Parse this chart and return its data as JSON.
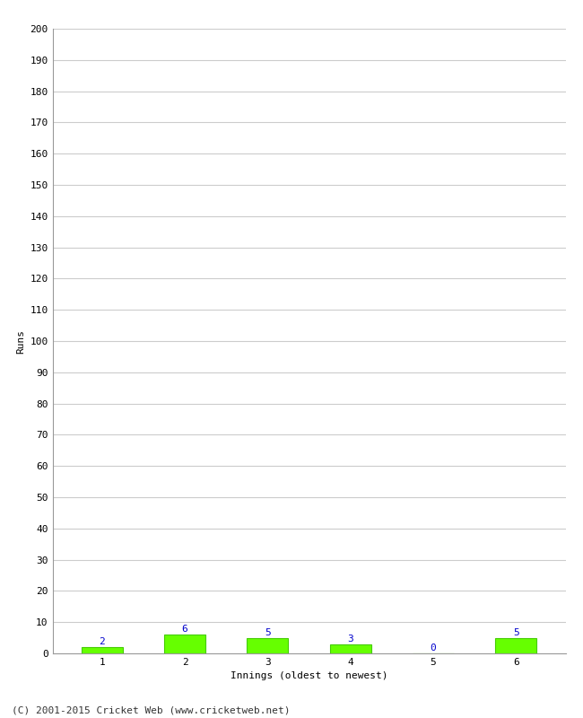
{
  "xlabel": "Innings (oldest to newest)",
  "ylabel": "Runs",
  "categories": [
    1,
    2,
    3,
    4,
    5,
    6
  ],
  "values": [
    2,
    6,
    5,
    3,
    0,
    5
  ],
  "bar_color": "#66ff00",
  "bar_edge_color": "#44cc00",
  "value_color": "#0000cc",
  "ylim": [
    0,
    200
  ],
  "yticks": [
    0,
    10,
    20,
    30,
    40,
    50,
    60,
    70,
    80,
    90,
    100,
    110,
    120,
    130,
    140,
    150,
    160,
    170,
    180,
    190,
    200
  ],
  "grid_color": "#cccccc",
  "background_color": "#ffffff",
  "footer": "(C) 2001-2015 Cricket Web (www.cricketweb.net)",
  "value_fontsize": 8,
  "axis_label_fontsize": 8,
  "tick_fontsize": 8,
  "footer_fontsize": 8
}
